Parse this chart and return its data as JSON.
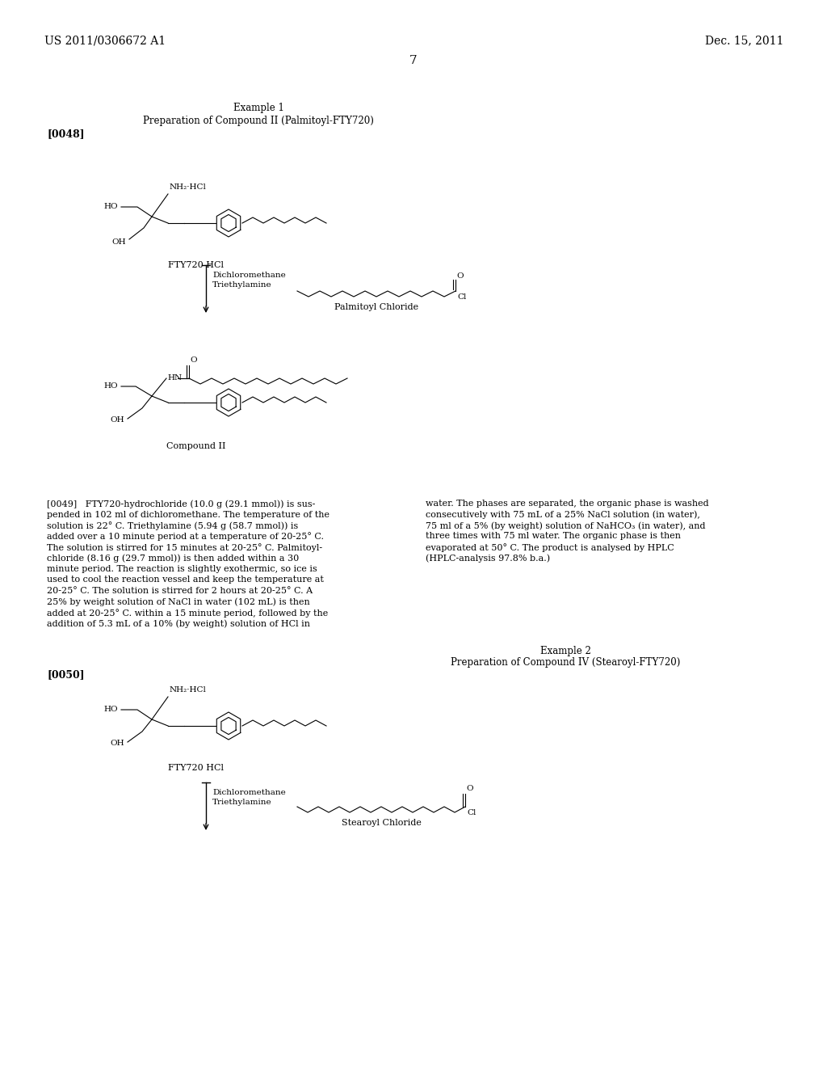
{
  "bg_color": "#ffffff",
  "header_left": "US 2011/0306672 A1",
  "header_right": "Dec. 15, 2011",
  "page_number": "7",
  "example1_title": "Example 1",
  "example1_subtitle": "Preparation of Compound II (Palmitoyl-FTY720)",
  "example1_ref": "[0048]",
  "label_fty720": "FTY720 HCl",
  "label_palmitoyl": "Palmitoyl Chloride",
  "reagents1_line1": "Dichloromethane",
  "reagents1_line2": "Triethylamine",
  "label_compound2": "Compound II",
  "para_0049_left": "[0049]   FTY720-hydrochloride (10.0 g (29.1 mmol)) is sus-\npended in 102 ml of dichloromethane. The temperature of the\nsolution is 22° C. Triethylamine (5.94 g (58.7 mmol)) is\nadded over a 10 minute period at a temperature of 20-25° C.\nThe solution is stirred for 15 minutes at 20-25° C. Palmitoyl-\nchloride (8.16 g (29.7 mmol)) is then added within a 30\nminute period. The reaction is slightly exothermic, so ice is\nused to cool the reaction vessel and keep the temperature at\n20-25° C. The solution is stirred for 2 hours at 20-25° C. A\n25% by weight solution of NaCl in water (102 mL) is then\nadded at 20-25° C. within a 15 minute period, followed by the\naddition of 5.3 mL of a 10% (by weight) solution of HCl in",
  "para_0049_right": "water. The phases are separated, the organic phase is washed\nconsecutively with 75 mL of a 25% NaCl solution (in water),\n75 ml of a 5% (by weight) solution of NaHCO₃ (in water), and\nthree times with 75 ml water. The organic phase is then\nevaporated at 50° C. The product is analysed by HPLC\n(HPLC-analysis 97.8% b.a.)",
  "example2_title": "Example 2",
  "example2_subtitle": "Preparation of Compound IV (Stearoyl-FTY720)",
  "example2_ref": "[0050]",
  "label_fty720_2": "FTY720 HCl",
  "label_stearoyl": "Stearoyl Chloride",
  "reagents2_line1": "Dichloromethane",
  "reagents2_line2": "Triethylamine"
}
